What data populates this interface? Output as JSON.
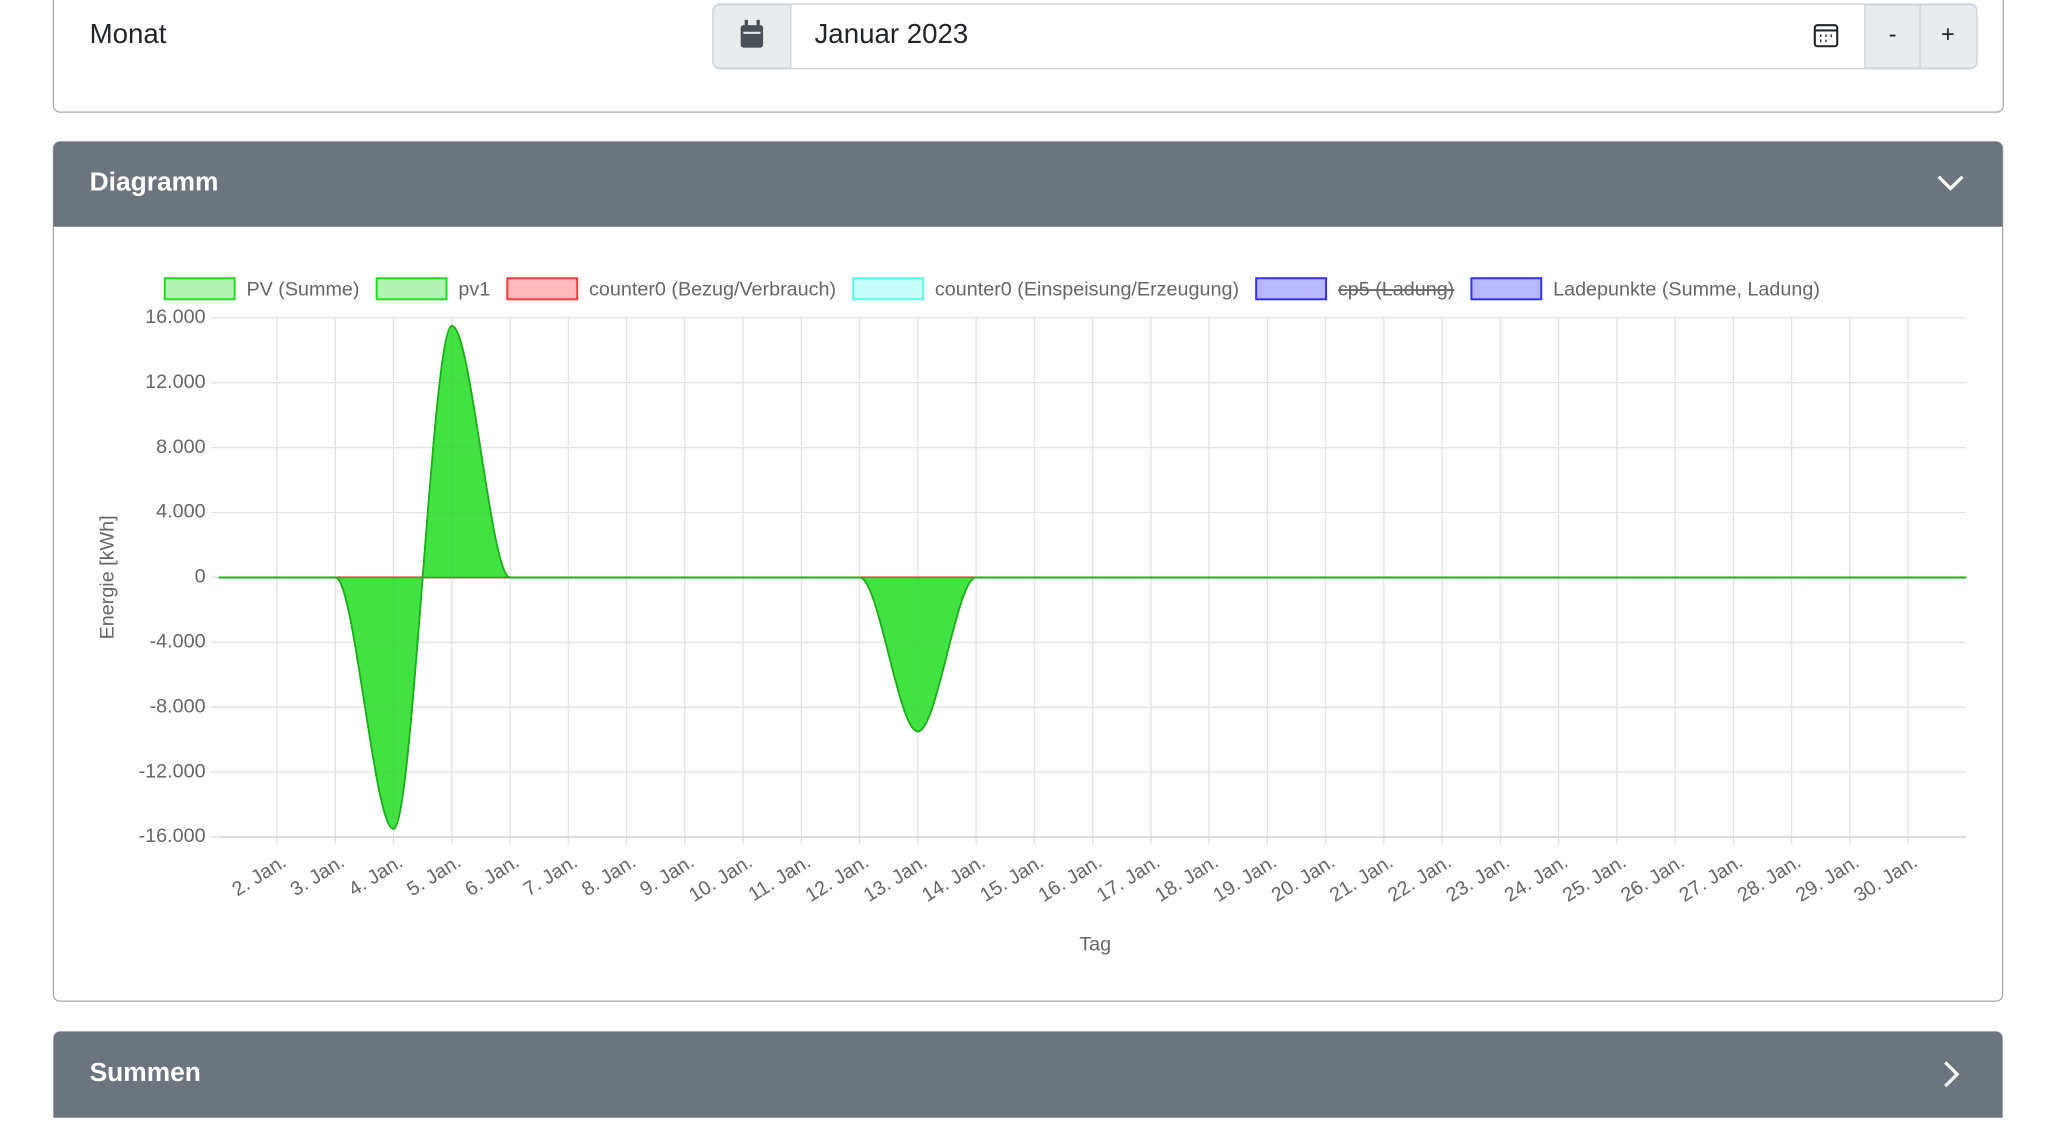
{
  "form": {
    "label": "Monat",
    "value": "Januar 2023",
    "minus": "-",
    "plus": "+"
  },
  "panels": [
    {
      "title": "Diagramm"
    },
    {
      "title": "Summen"
    }
  ],
  "chart_data": {
    "type": "area",
    "x_label": "Tag",
    "y_label": "Energie [kWh]",
    "categories": [
      null,
      "2. Jan.",
      "3. Jan.",
      "4. Jan.",
      "5. Jan.",
      "6. Jan.",
      "7. Jan.",
      "8. Jan.",
      "9. Jan.",
      "10. Jan.",
      "11. Jan.",
      "12. Jan.",
      "13. Jan.",
      "14. Jan.",
      "15. Jan.",
      "16. Jan.",
      "17. Jan.",
      "18. Jan.",
      "19. Jan.",
      "20. Jan.",
      "21. Jan.",
      "22. Jan.",
      "23. Jan.",
      "24. Jan.",
      "25. Jan.",
      "26. Jan.",
      "27. Jan.",
      "28. Jan.",
      "29. Jan.",
      "30. Jan.",
      null
    ],
    "series": [
      {
        "name": "PV (Summe)",
        "color": "#1fdc1f",
        "values": [
          0,
          0,
          0,
          -15500,
          15500,
          0,
          0,
          0,
          0,
          0,
          0,
          0,
          -9500,
          0,
          0,
          0,
          0,
          0,
          0,
          0,
          0,
          0,
          0,
          0,
          0,
          0,
          0,
          0,
          0,
          0,
          0
        ]
      },
      {
        "name": "pv1",
        "color": "#1fdc1f",
        "values": [
          0,
          0,
          0,
          -15500,
          15500,
          0,
          0,
          0,
          0,
          0,
          0,
          0,
          -9500,
          0,
          0,
          0,
          0,
          0,
          0,
          0,
          0,
          0,
          0,
          0,
          0,
          0,
          0,
          0,
          0,
          0,
          0
        ]
      },
      {
        "name": "counter0 (Bezug/Verbrauch)",
        "color": "#ff3b3b",
        "values": [
          0,
          0,
          0,
          0,
          0,
          0,
          0,
          0,
          0,
          0,
          0,
          0,
          0,
          0,
          0,
          0,
          0,
          0,
          0,
          0,
          0,
          0,
          0,
          0,
          0,
          0,
          0,
          0,
          0,
          0,
          0
        ]
      },
      {
        "name": "counter0 (Einspeisung/Erzeugung)",
        "color": "#55ffe8",
        "values": [
          0,
          0,
          0,
          0,
          0,
          0,
          0,
          0,
          0,
          0,
          0,
          0,
          0,
          0,
          0,
          0,
          0,
          0,
          0,
          0,
          0,
          0,
          0,
          0,
          0,
          0,
          0,
          0,
          0,
          0,
          0
        ]
      },
      {
        "name": "cp5 (Ladung)",
        "color": "#3030ff",
        "hidden": true
      },
      {
        "name": "Ladepunkte (Summe, Ladung)",
        "color": "#3030ff",
        "values": [
          0,
          0,
          0,
          0,
          0,
          0,
          0,
          0,
          0,
          0,
          0,
          0,
          0,
          0,
          0,
          0,
          0,
          0,
          0,
          0,
          0,
          0,
          0,
          0,
          0,
          0,
          0,
          0,
          0,
          0,
          0
        ]
      }
    ],
    "ylim": [
      -16000,
      16000
    ],
    "yticks": [
      {
        "value": -16000,
        "label": "-16.000"
      },
      {
        "value": -12000,
        "label": "-12.000"
      },
      {
        "value": -8000,
        "label": "-8.000"
      },
      {
        "value": -4000,
        "label": "-4.000"
      },
      0,
      {
        "value": 4000,
        "label": "4.000"
      },
      {
        "value": 8000,
        "label": "8.000"
      },
      {
        "value": 12000,
        "label": "12.000"
      },
      {
        "value": 16000,
        "label": "16.000"
      }
    ],
    "grid": true,
    "legend": "top"
  }
}
